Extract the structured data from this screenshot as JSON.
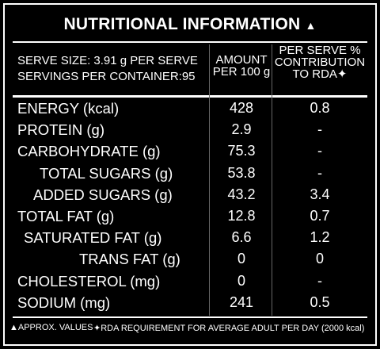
{
  "header": {
    "title": "NUTRITIONAL INFORMATION",
    "title_mark": "▲"
  },
  "table": {
    "serve_lines": [
      "SERVE SIZE: 3.91 g PER SERVE",
      "SERVINGS PER CONTAINER:95"
    ],
    "columns": [
      [
        "AMOUNT",
        "PER 100 g"
      ],
      [
        "PER SERVE %",
        "CONTRIBUTION",
        "TO RDA✦"
      ]
    ],
    "rows": [
      [
        "ENERGY (kcal)",
        "428",
        "0.8"
      ],
      [
        "PROTEIN (g)",
        "2.9",
        "-"
      ],
      [
        "CARBOHYDRATE (g)",
        "75.3",
        "-"
      ],
      [
        "TOTAL SUGARS (g)",
        "53.8",
        "-"
      ],
      [
        "ADDED SUGARS (g)",
        "43.2",
        "3.4"
      ],
      [
        "TOTAL FAT (g)",
        "12.8",
        "0.7"
      ],
      [
        "SATURATED FAT (g)",
        "6.6",
        "1.2"
      ],
      [
        "TRANS FAT (g)",
        "0",
        "0"
      ],
      [
        "CHOLESTEROL (mg)",
        "0",
        "-"
      ],
      [
        "SODIUM (mg)",
        "241",
        "0.5"
      ]
    ]
  },
  "footer": {
    "notes": [
      "▲APPROX. VALUES",
      "✦RDA REQUIREMENT FOR AVERAGE ADULT PER DAY (2000 kcal)"
    ]
  }
}
